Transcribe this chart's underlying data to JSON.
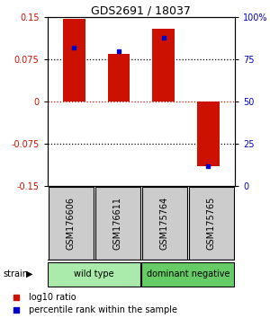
{
  "title": "GDS2691 / 18037",
  "samples": [
    "GSM176606",
    "GSM176611",
    "GSM175764",
    "GSM175765"
  ],
  "log10_ratio": [
    0.147,
    0.085,
    0.13,
    -0.115
  ],
  "percentile_rank": [
    82,
    80,
    88,
    12
  ],
  "ylim": [
    -0.15,
    0.15
  ],
  "yticks_left": [
    -0.15,
    -0.075,
    0,
    0.075,
    0.15
  ],
  "yticks_right": [
    0,
    25,
    50,
    75,
    100
  ],
  "bar_color": "#cc1100",
  "marker_color": "#0000cc",
  "box_color": "#cccccc",
  "group1_color": "#aaeaaa",
  "group2_color": "#66cc66",
  "groups": [
    {
      "label": "wild type",
      "samples": [
        0,
        1
      ],
      "color": "#aaeaaa"
    },
    {
      "label": "dominant negative",
      "samples": [
        2,
        3
      ],
      "color": "#66cc66"
    }
  ],
  "group_label": "strain",
  "legend_red": "log10 ratio",
  "legend_blue": "percentile rank within the sample",
  "bar_width": 0.5
}
